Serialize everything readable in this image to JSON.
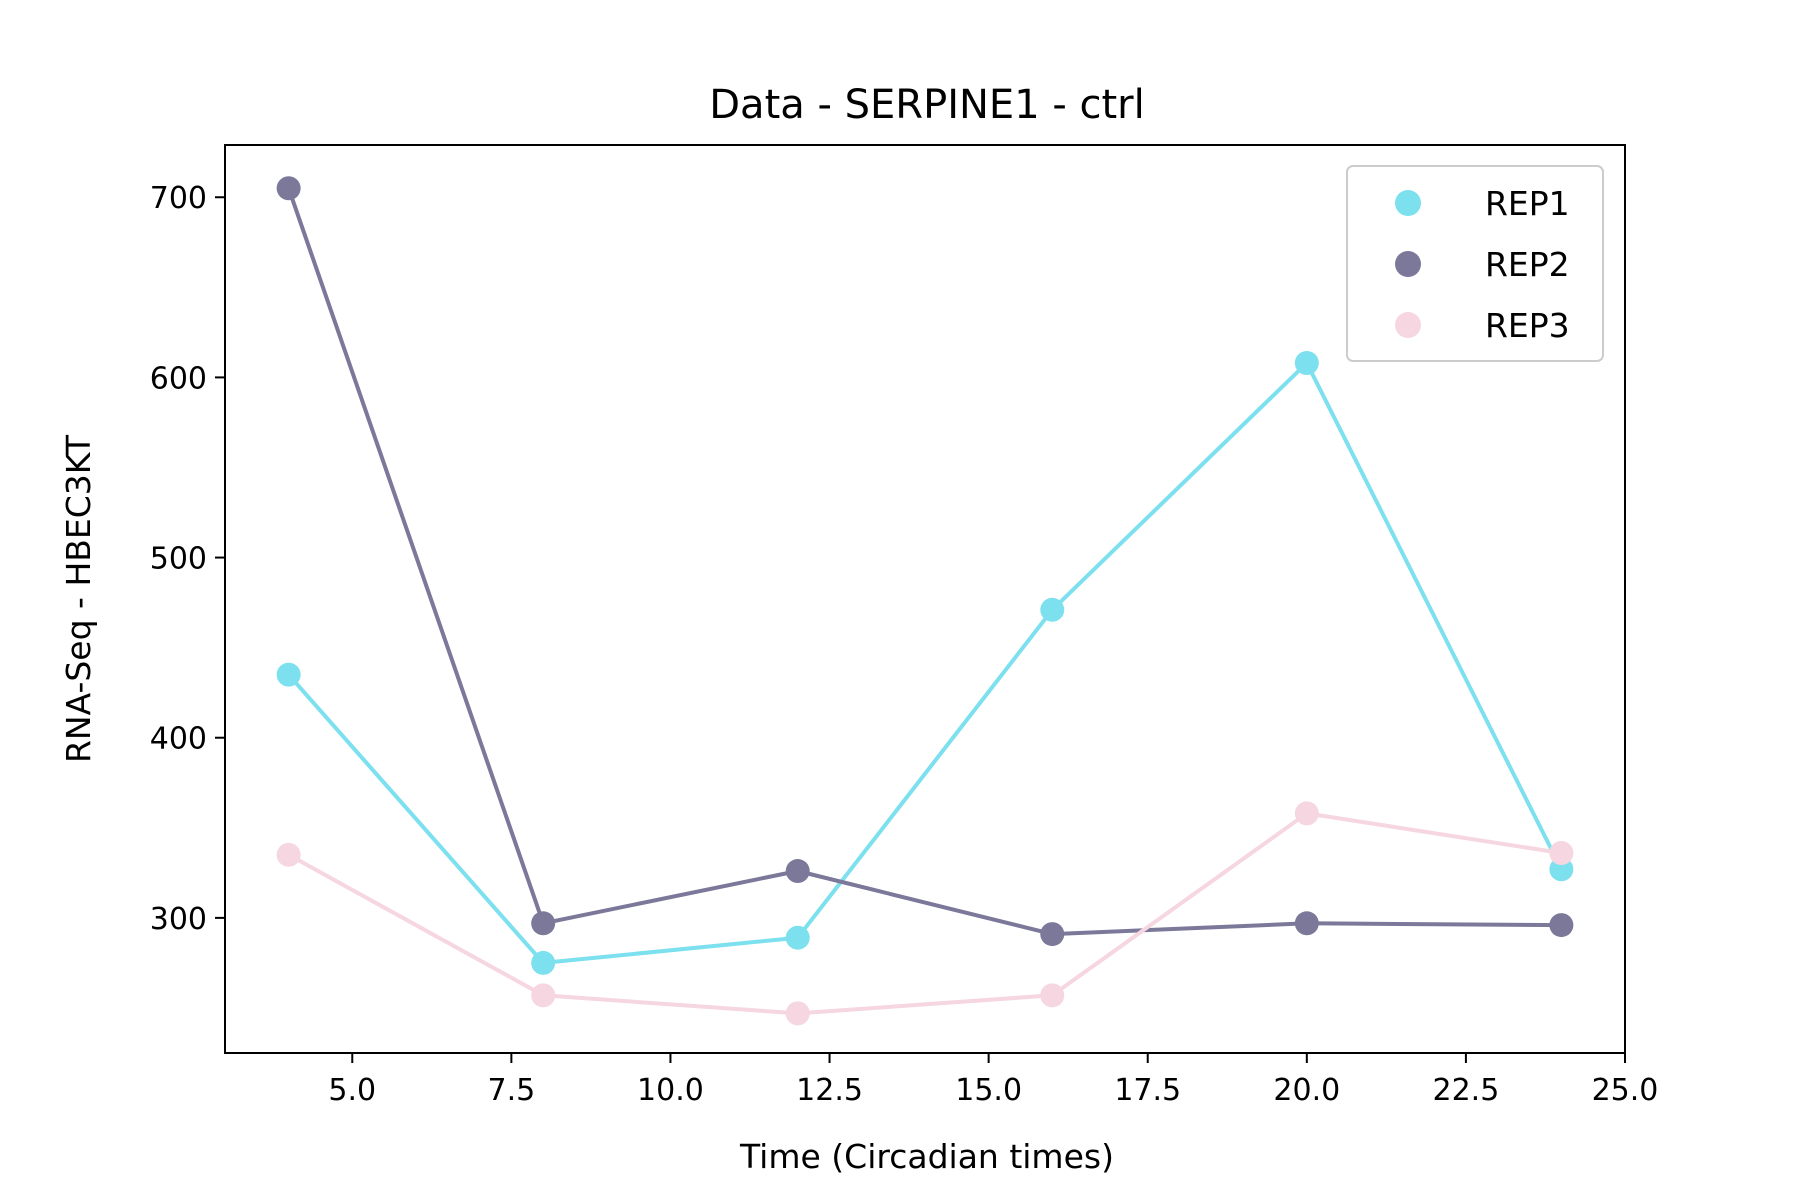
{
  "chart_data": {
    "type": "line",
    "title": "Data - SERPINE1 - ctrl",
    "xlabel": "Time (Circadian times)",
    "ylabel": "RNA-Seq - HBEC3KT",
    "xlim": [
      3.0,
      25.0
    ],
    "ylim": [
      225,
      729
    ],
    "x_ticks": [
      5.0,
      7.5,
      10.0,
      12.5,
      15.0,
      17.5,
      20.0,
      22.5,
      25.0
    ],
    "x_tick_labels": [
      "5.0",
      "7.5",
      "10.0",
      "12.5",
      "15.0",
      "17.5",
      "20.0",
      "22.5",
      "25.0"
    ],
    "y_ticks": [
      300,
      400,
      500,
      600,
      700
    ],
    "y_tick_labels": [
      "300",
      "400",
      "500",
      "600",
      "700"
    ],
    "grid": false,
    "legend_position": "top-right",
    "x": [
      4,
      8,
      12,
      16,
      20,
      24
    ],
    "series": [
      {
        "name": "REP1",
        "color": "#7ce0ef",
        "values": [
          435,
          275,
          289,
          471,
          608,
          327
        ]
      },
      {
        "name": "REP2",
        "color": "#7b7899",
        "values": [
          705,
          297,
          326,
          291,
          297,
          296
        ]
      },
      {
        "name": "REP3",
        "color": "#f6d6e0",
        "values": [
          335,
          257,
          247,
          257,
          358,
          336
        ]
      }
    ]
  }
}
